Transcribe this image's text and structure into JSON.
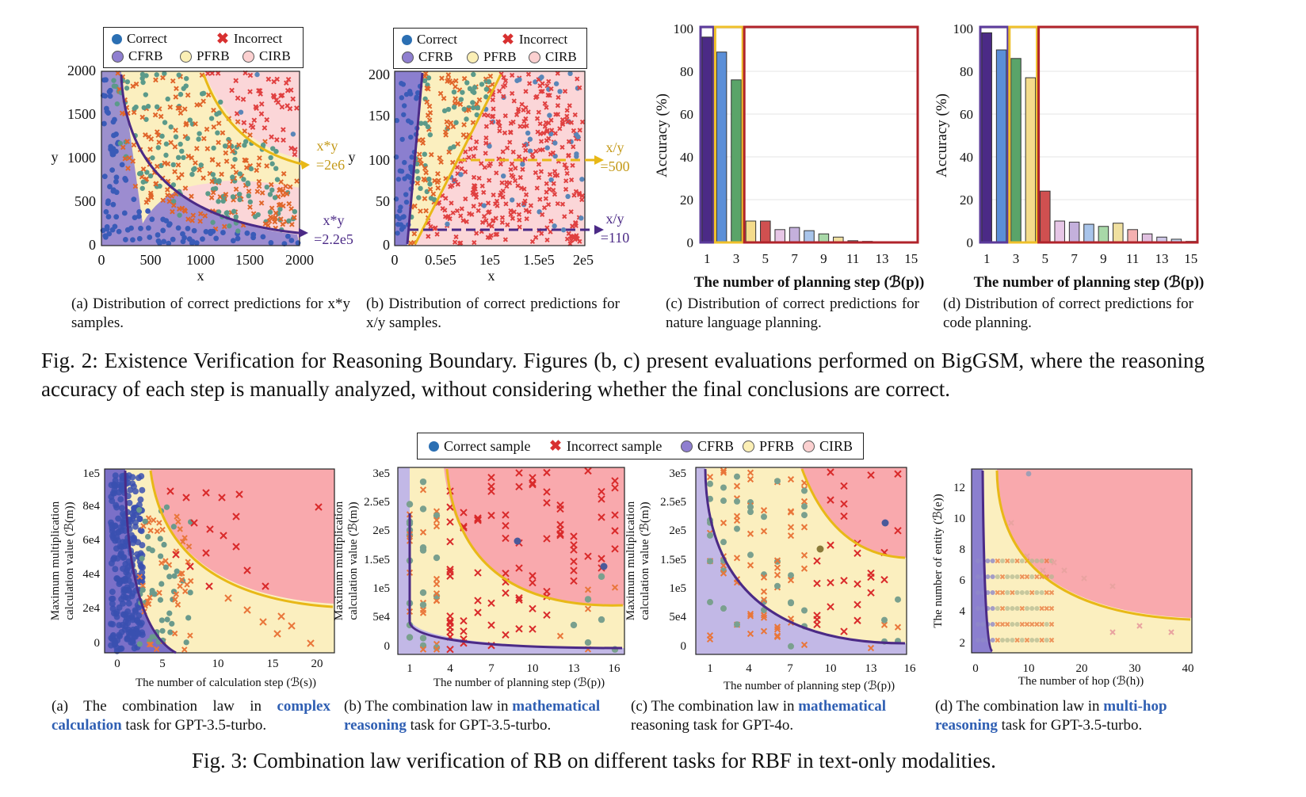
{
  "fig2": {
    "legend": {
      "correct": "Correct",
      "incorrect": "Incorrect",
      "cfrb": "CFRB",
      "pfrb": "PFRB",
      "cirb": "CIRB"
    },
    "a": {
      "xticks": [
        "0",
        "500",
        "1000",
        "1500",
        "2000"
      ],
      "yticks": [
        "0",
        "500",
        "1000",
        "1500",
        "2000"
      ],
      "xlabel": "x",
      "ylabel": "y",
      "ann_top": [
        "x*y",
        "=2e6"
      ],
      "ann_bot": [
        "x*y",
        "=2.2e5"
      ],
      "caption": "(a) Distribution of correct predictions for x*y samples."
    },
    "b": {
      "xticks": [
        "0",
        "0.5e5",
        "1e5",
        "1.5e5",
        "2e5"
      ],
      "yticks": [
        "0",
        "50",
        "100",
        "150",
        "200"
      ],
      "xlabel": "x",
      "ylabel": "y",
      "ann_top": [
        "x/y",
        "=500"
      ],
      "ann_bot": [
        "x/y",
        "=110"
      ],
      "caption": "(b) Distribution of correct predictions for x/y samples."
    },
    "c": {
      "caption": "(c) Distribution of correct predictions for nature language planning.",
      "ylabel": "Accuracy (%)",
      "xlabel": "The number of planning step (ℬ(p))"
    },
    "d": {
      "caption": "(d) Distribution of correct predictions for code planning.",
      "ylabel": "Accuracy (%)",
      "xlabel": "The number of planning step (ℬ(p))"
    },
    "caption": "Fig. 2: Existence Verification for Reasoning Boundary. Figures (b, c) present evaluations performed on BigGSM, where the reasoning accuracy of each step is manually analyzed, without considering whether the final conclusions are correct."
  },
  "fig3": {
    "legend": {
      "correct": "Correct sample",
      "incorrect": "Incorrect sample",
      "cfrb": "CFRB",
      "pfrb": "PFRB",
      "cirb": "CIRB"
    },
    "a": {
      "ylabel1": "Maximum multiplication",
      "ylabel2": "calculation value (ℬ(m))",
      "xlabel": "The number of calculation step (ℬ(s))",
      "xticks": [
        "0",
        "5",
        "10",
        "15",
        "20"
      ],
      "yticks": [
        "0",
        "2e4",
        "4e4",
        "6e4",
        "8e4",
        "1e5"
      ],
      "cap_pre": "(a) The combination law in ",
      "cap_hl": "complex calculation",
      "cap_post": " task for GPT-3.5-turbo."
    },
    "b": {
      "ylabel1": "Maximum multiplication",
      "ylabel2": "calculation value (ℬ(m))",
      "xlabel": "The number of planning step (ℬ(p))",
      "xticks": [
        "1",
        "4",
        "7",
        "10",
        "13",
        "16"
      ],
      "yticks": [
        "0",
        "5e4",
        "1e5",
        "1.5e5",
        "2e5",
        "2.5e5",
        "3e5"
      ],
      "cap_pre": "(b) The combination law in ",
      "cap_hl": "mathematical reasoning",
      "cap_post": " task for GPT-3.5-turbo."
    },
    "c": {
      "ylabel1": "Maximum multiplication",
      "ylabel2": "calculation value (ℬ(m))",
      "xlabel": "The number of planning step (ℬ(p))",
      "xticks": [
        "1",
        "4",
        "7",
        "10",
        "13",
        "16"
      ],
      "yticks": [
        "0",
        "5e4",
        "1e5",
        "1.5e5",
        "2e5",
        "2.5e5",
        "3e5"
      ],
      "cap_pre": "(c) The combination law in ",
      "cap_hl": "mathematical",
      "cap_post": " reasoning task for GPT-4o."
    },
    "d": {
      "ylabel": "The number of entity (ℬ(e))",
      "xlabel": "The number of hop (ℬ(h))",
      "xticks": [
        "0",
        "10",
        "20",
        "30",
        "40"
      ],
      "yticks": [
        "2",
        "4",
        "6",
        "8",
        "10",
        "12"
      ],
      "cap_pre": "(d) The combination law in ",
      "cap_hl": "multi-hop reasoning",
      "cap_post": " task for GPT-3.5-turbo."
    },
    "caption": "Fig. 3: Combination law verification of RB on different tasks for RBF in text-only modalities."
  },
  "chart_data": [
    {
      "type": "bar",
      "title": "",
      "xlabel": "The number of planning step (ℬ(p))",
      "ylabel": "Accuracy (%)",
      "ylim": [
        0,
        100
      ],
      "categories": [
        "1",
        "2",
        "3",
        "4",
        "5",
        "6",
        "7",
        "8",
        "9",
        "10",
        "11",
        "12",
        "13",
        "14",
        "15"
      ],
      "xtick_labels": [
        "1",
        "3",
        "5",
        "7",
        "9",
        "11",
        "13",
        "15"
      ],
      "yticks": [
        "0",
        "20",
        "40",
        "60",
        "80",
        "100"
      ],
      "values": [
        96,
        89,
        76,
        10,
        10,
        6,
        7,
        5.5,
        4,
        2.5,
        0.8,
        0.5,
        0.3,
        0.2,
        0.1
      ],
      "colors": [
        "#4b2a86",
        "#5b8fd8",
        "#5aa469",
        "#f4dc8c",
        "#d05050",
        "#e6c6e6",
        "#c4b0dc",
        "#a8c4ea",
        "#a8d8a8",
        "#f0e0a0",
        "#f4b0b0",
        "#e0c0e0",
        "#d0c8e8",
        "#c0d4ee",
        "#d8ecd0"
      ],
      "regions": [
        {
          "label": "CFRB",
          "from": "1",
          "to": "1"
        },
        {
          "label": "PFRB",
          "from": "2",
          "to": "3"
        },
        {
          "label": "CIRB",
          "from": "4",
          "to": "15"
        }
      ]
    },
    {
      "type": "bar",
      "title": "",
      "xlabel": "The number of planning step (ℬ(p))",
      "ylabel": "Accuracy (%)",
      "ylim": [
        0,
        100
      ],
      "categories": [
        "1",
        "2",
        "3",
        "4",
        "5",
        "6",
        "7",
        "8",
        "9",
        "10",
        "11",
        "12",
        "13",
        "14",
        "15"
      ],
      "xtick_labels": [
        "1",
        "3",
        "5",
        "7",
        "9",
        "11",
        "13",
        "15"
      ],
      "yticks": [
        "0",
        "20",
        "40",
        "60",
        "80",
        "100"
      ],
      "values": [
        98,
        90,
        86,
        77,
        24,
        10,
        9.5,
        8.5,
        7.5,
        9,
        6,
        4,
        2.5,
        1.5,
        0.5
      ],
      "colors": [
        "#4b2a86",
        "#5b8fd8",
        "#5aa469",
        "#f4dc8c",
        "#d05050",
        "#e6c6e6",
        "#c4b0dc",
        "#a8c4ea",
        "#a8d8a8",
        "#f0e0a0",
        "#f4b0b0",
        "#e0c0e0",
        "#d0c8e8",
        "#c0d4ee",
        "#d8ecd0"
      ],
      "regions": [
        {
          "label": "CFRB",
          "from": "1",
          "to": "2"
        },
        {
          "label": "PFRB",
          "from": "3",
          "to": "4"
        },
        {
          "label": "CIRB",
          "from": "5",
          "to": "15"
        }
      ]
    }
  ]
}
